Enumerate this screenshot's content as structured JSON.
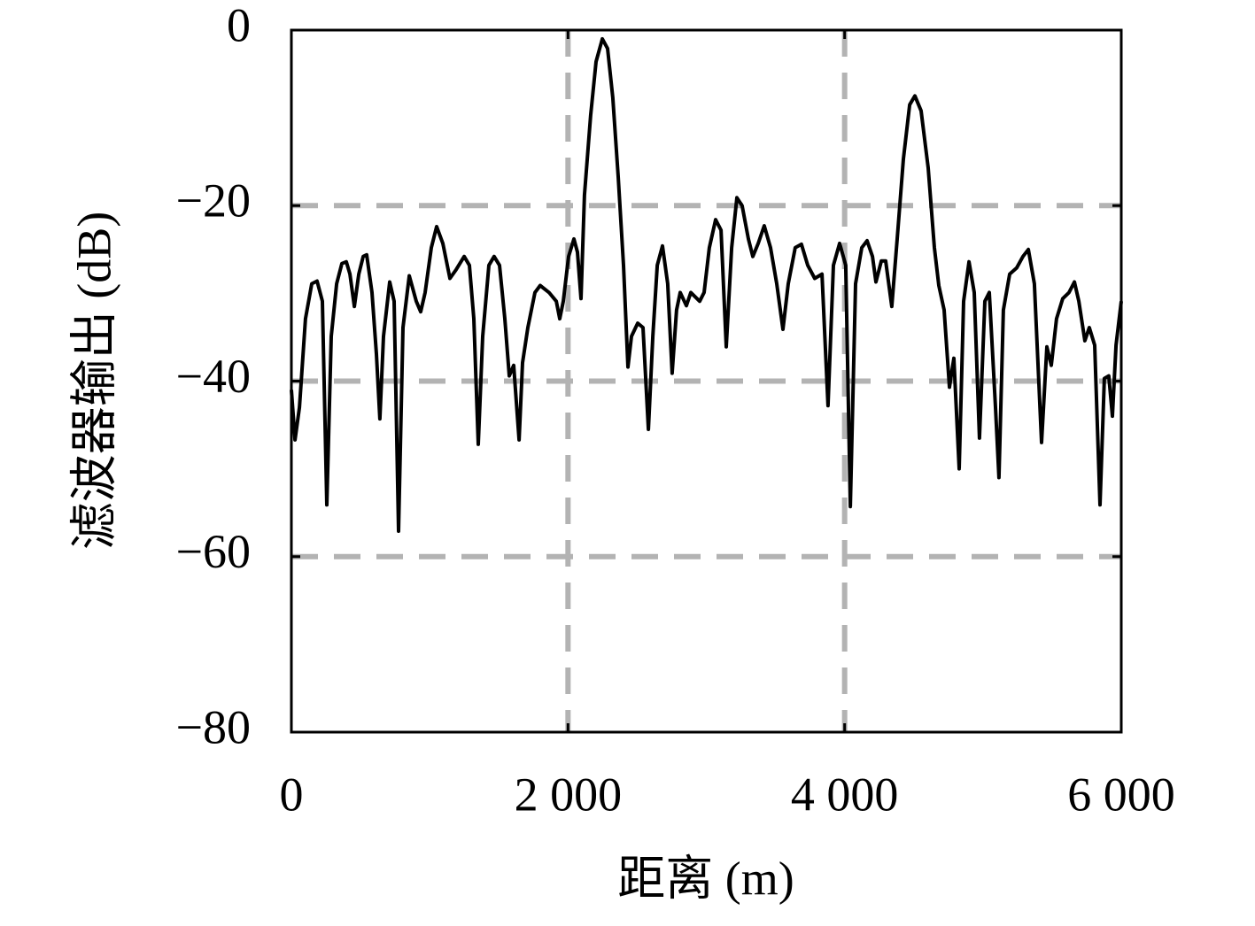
{
  "chart_data": {
    "type": "line",
    "xlabel": "距离 (m)",
    "ylabel": "滤波器输出 (dB)",
    "x": [
      0,
      26,
      58,
      102,
      147,
      186,
      224,
      256,
      288,
      327,
      365,
      397,
      423,
      455,
      487,
      519,
      544,
      583,
      615,
      640,
      666,
      711,
      743,
      775,
      807,
      852,
      903,
      935,
      967,
      1012,
      1050,
      1095,
      1146,
      1191,
      1249,
      1287,
      1319,
      1351,
      1383,
      1428,
      1466,
      1505,
      1543,
      1575,
      1607,
      1646,
      1671,
      1710,
      1761,
      1799,
      1863,
      1915,
      1940,
      1966,
      2004,
      2043,
      2068,
      2094,
      2119,
      2164,
      2203,
      2248,
      2286,
      2324,
      2363,
      2401,
      2433,
      2459,
      2504,
      2542,
      2581,
      2613,
      2645,
      2683,
      2721,
      2753,
      2785,
      2811,
      2856,
      2888,
      2952,
      2984,
      3022,
      3067,
      3106,
      3144,
      3183,
      3221,
      3259,
      3304,
      3336,
      3375,
      3419,
      3464,
      3509,
      3554,
      3592,
      3643,
      3688,
      3733,
      3784,
      3836,
      3880,
      3919,
      3964,
      4008,
      4041,
      4079,
      4124,
      4162,
      4201,
      4226,
      4265,
      4297,
      4341,
      4380,
      4425,
      4470,
      4508,
      4553,
      4604,
      4649,
      4681,
      4719,
      4758,
      4790,
      4828,
      4860,
      4899,
      4937,
      4975,
      5014,
      5046,
      5091,
      5116,
      5148,
      5193,
      5244,
      5289,
      5328,
      5372,
      5424,
      5462,
      5494,
      5532,
      5577,
      5622,
      5661,
      5693,
      5737,
      5769,
      5808,
      5846,
      5878,
      5910,
      5936,
      5962,
      6000
    ],
    "values": [
      -41.0,
      -46.7,
      -43.0,
      -32.9,
      -28.9,
      -28.6,
      -30.9,
      -54.1,
      -34.9,
      -28.9,
      -26.6,
      -26.4,
      -27.8,
      -31.5,
      -27.8,
      -25.8,
      -25.6,
      -29.9,
      -36.9,
      -44.3,
      -34.9,
      -28.7,
      -30.9,
      -57.1,
      -33.9,
      -28.0,
      -30.9,
      -32.1,
      -29.9,
      -24.8,
      -22.4,
      -24.3,
      -28.3,
      -27.3,
      -25.8,
      -26.8,
      -32.9,
      -47.2,
      -34.9,
      -26.8,
      -25.8,
      -26.8,
      -32.9,
      -39.4,
      -38.2,
      -46.7,
      -37.9,
      -33.9,
      -29.9,
      -29.1,
      -29.9,
      -30.9,
      -32.9,
      -30.9,
      -25.8,
      -23.8,
      -25.3,
      -30.6,
      -18.8,
      -9.7,
      -3.6,
      -1.0,
      -2.1,
      -7.7,
      -16.7,
      -26.8,
      -38.4,
      -34.9,
      -33.4,
      -33.9,
      -45.5,
      -34.9,
      -26.8,
      -24.6,
      -28.9,
      -39.1,
      -31.9,
      -29.9,
      -31.4,
      -29.9,
      -30.9,
      -29.9,
      -24.8,
      -21.6,
      -22.8,
      -36.1,
      -24.8,
      -19.1,
      -20.0,
      -23.8,
      -25.8,
      -24.3,
      -22.3,
      -24.8,
      -28.9,
      -34.1,
      -28.9,
      -24.8,
      -24.4,
      -26.8,
      -28.3,
      -27.8,
      -42.8,
      -26.8,
      -24.3,
      -26.8,
      -54.3,
      -28.9,
      -24.8,
      -24.0,
      -25.8,
      -28.7,
      -26.3,
      -26.3,
      -31.5,
      -23.8,
      -14.7,
      -8.5,
      -7.5,
      -9.2,
      -15.7,
      -24.8,
      -29.1,
      -31.9,
      -40.7,
      -37.4,
      -50.0,
      -30.9,
      -26.4,
      -29.9,
      -46.5,
      -30.9,
      -29.9,
      -43.0,
      -51.0,
      -31.9,
      -27.8,
      -27.1,
      -25.8,
      -25.0,
      -28.9,
      -47.0,
      -36.1,
      -38.2,
      -32.9,
      -30.6,
      -29.9,
      -28.7,
      -30.9,
      -35.4,
      -33.9,
      -35.9,
      -54.1,
      -39.7,
      -39.4,
      -44.0,
      -35.9,
      -30.9
    ],
    "color": "#000000",
    "xlim": [
      0,
      6000
    ],
    "xticks": [
      0,
      {
        "value": 2000,
        "label": "2 000"
      },
      {
        "value": 4000,
        "label": "4 000"
      },
      {
        "value": 6000,
        "label": "6 000"
      }
    ],
    "ylim": [
      -80,
      0
    ],
    "yticks": [
      {
        "value": -80,
        "label": "−80"
      },
      {
        "value": -60,
        "label": "−60"
      },
      {
        "value": -40,
        "label": "−40"
      },
      {
        "value": -20,
        "label": "−20"
      },
      0
    ],
    "grid": true
  }
}
